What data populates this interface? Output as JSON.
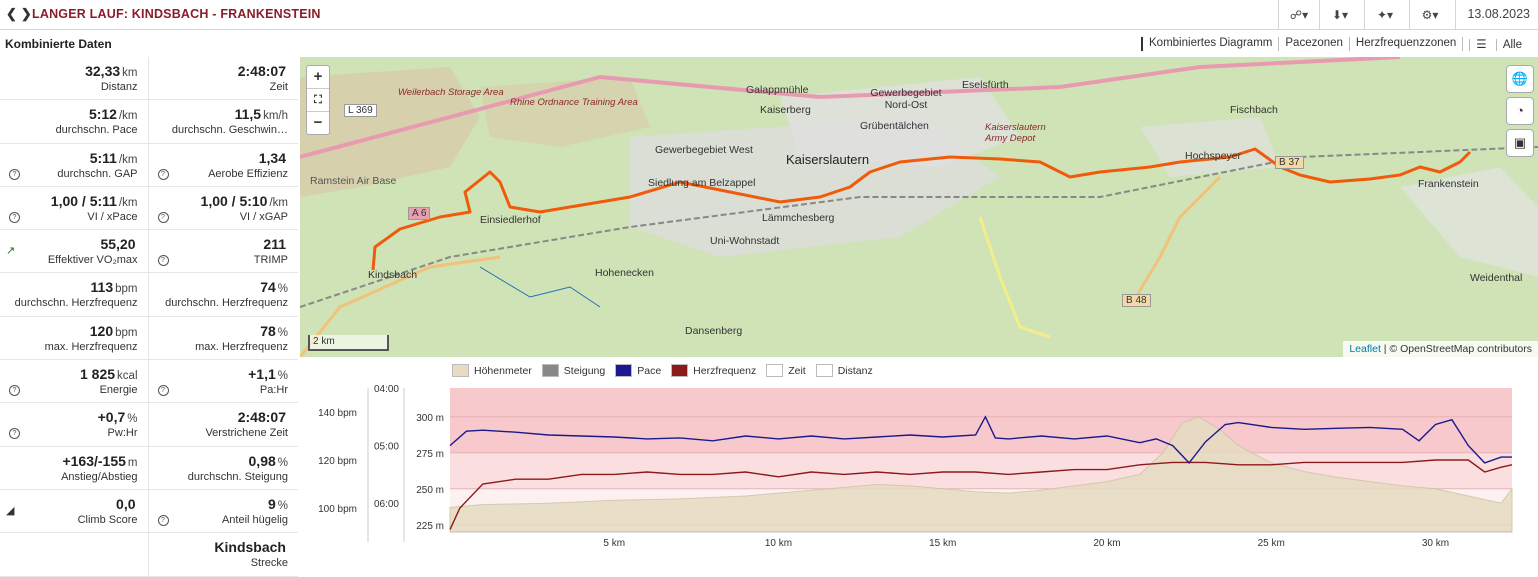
{
  "header": {
    "title": "LANGER LAUF: KINDSBACH - FRANKENSTEIN",
    "date": "13.08.2023",
    "toolbar": [
      "share-icon",
      "download-icon",
      "magic-wand-icon",
      "wrench-icon"
    ]
  },
  "section_title": "Kombinierte Daten",
  "view_tabs": [
    "Kombiniertes Diagramm",
    "Pacezonen",
    "Herzfrequenzzonen",
    "Alle"
  ],
  "stats": [
    [
      {
        "value": "32,33",
        "unit": "km",
        "label": "Distanz",
        "icon": ""
      },
      {
        "value": "2:48:07",
        "unit": "",
        "label": "Zeit",
        "icon": ""
      }
    ],
    [
      {
        "value": "5:12",
        "unit": "/km",
        "label": "durchschn. Pace",
        "icon": ""
      },
      {
        "value": "11,5",
        "unit": "km/h",
        "label": "durchschn. Geschwin…",
        "icon": ""
      }
    ],
    [
      {
        "value": "5:11",
        "unit": "/km",
        "label": "durchschn. GAP",
        "icon": "help"
      },
      {
        "value": "1,34",
        "unit": "",
        "label": "Aerobe Effizienz",
        "icon": "help"
      }
    ],
    [
      {
        "value": "1,00 / 5:11",
        "unit": "/km",
        "label": "VI / xPace",
        "icon": "help"
      },
      {
        "value": "1,00 / 5:10",
        "unit": "/km",
        "label": "VI / xGAP",
        "icon": "help"
      }
    ],
    [
      {
        "value": "55,20",
        "unit": "",
        "label": "Effektiver VO₂max",
        "icon": "trend"
      },
      {
        "value": "211",
        "unit": "",
        "label": "TRIMP",
        "icon": "help"
      }
    ],
    [
      {
        "value": "113",
        "unit": "bpm",
        "label": "durchschn. Herzfrequenz",
        "icon": ""
      },
      {
        "value": "74",
        "unit": "%",
        "label": "durchschn. Herzfrequenz",
        "icon": ""
      }
    ],
    [
      {
        "value": "120",
        "unit": "bpm",
        "label": "max. Herzfrequenz",
        "icon": ""
      },
      {
        "value": "78",
        "unit": "%",
        "label": "max. Herzfrequenz",
        "icon": ""
      }
    ],
    [
      {
        "value": "1 825",
        "unit": "kcal",
        "label": "Energie",
        "icon": "help"
      },
      {
        "value": "+1,1",
        "unit": "%",
        "label": "Pa:Hr",
        "icon": "help"
      }
    ],
    [
      {
        "value": "+0,7",
        "unit": "%",
        "label": "Pw:Hr",
        "icon": "help"
      },
      {
        "value": "2:48:07",
        "unit": "",
        "label": "Verstrichene Zeit",
        "icon": ""
      }
    ],
    [
      {
        "value": "+163/-155",
        "unit": "m",
        "label": "Anstieg/Abstieg",
        "icon": ""
      },
      {
        "value": "0,98",
        "unit": "%",
        "label": "durchschn. Steigung",
        "icon": ""
      }
    ],
    [
      {
        "value": "0,0",
        "unit": "",
        "label": "Climb Score",
        "icon": "chart"
      },
      {
        "value": "9",
        "unit": "%",
        "label": "Anteil hügelig",
        "icon": "help"
      }
    ],
    [
      {
        "value": "",
        "unit": "",
        "label": "",
        "icon": ""
      },
      {
        "value": "Kindsbach",
        "unit": "",
        "label": "Strecke",
        "icon": ""
      }
    ]
  ],
  "map": {
    "scale": "2 km",
    "attribution_link": "Leaflet",
    "attribution_text": "| © OpenStreetMap contributors",
    "labels": [
      "Weilerbach Storage Area",
      "Rhine Ordnance Training Area",
      "Ramstein Air Base",
      "Kindsbach",
      "Einsiedlerhof",
      "Gewerbegebiet West",
      "Siedlung am Belzappel",
      "Hohenecken",
      "Dansenberg",
      "Uni-Wohnstadt",
      "Lämmchesberg",
      "Kaiserslautern",
      "Galappmühle",
      "Kaiserberg",
      "Gewerbegebiet Nord-Ost",
      "Grübentälchen",
      "Eselsfürth",
      "Kaiserslautern Army Depot",
      "Fischbach",
      "Hochspeyer",
      "Frankenstein",
      "Weidenthal",
      "L 369",
      "A 6",
      "B 37",
      "B 48"
    ]
  },
  "chart_data": {
    "type": "line",
    "legend": [
      {
        "name": "Höhenmeter",
        "color": "#e7dcc3"
      },
      {
        "name": "Steigung",
        "color": "#888888"
      },
      {
        "name": "Pace",
        "color": "#1a1a8c"
      },
      {
        "name": "Herzfrequenz",
        "color": "#8c1a1a"
      },
      {
        "name": "Zeit",
        "color": "#ffffff"
      },
      {
        "name": "Distanz",
        "color": "#ffffff"
      }
    ],
    "x_ticks": [
      "5 km",
      "10 km",
      "15 km",
      "20 km",
      "25 km",
      "30 km"
    ],
    "x_tick_values": [
      5,
      10,
      15,
      20,
      25,
      30
    ],
    "xlim": [
      0,
      32.33
    ],
    "hr_ticks": [
      "140 bpm",
      "120 bpm",
      "100 bpm"
    ],
    "hr_tick_values": [
      140,
      120,
      100
    ],
    "hr_range": [
      90,
      150
    ],
    "pace_ticks": [
      "04:00",
      "05:00",
      "06:00"
    ],
    "pace_tick_values": [
      240,
      300,
      360
    ],
    "pace_range": [
      240,
      390
    ],
    "elev_ticks": [
      "300 m",
      "275 m",
      "250 m",
      "225 m"
    ],
    "elev_tick_values": [
      300,
      275,
      250,
      225
    ],
    "elev_range": [
      220,
      320
    ],
    "elevation": [
      [
        0,
        237
      ],
      [
        1,
        239
      ],
      [
        3,
        240
      ],
      [
        5,
        242
      ],
      [
        7,
        243
      ],
      [
        9,
        245
      ],
      [
        10,
        247
      ],
      [
        11,
        249
      ],
      [
        12,
        251
      ],
      [
        13,
        253
      ],
      [
        14,
        252
      ],
      [
        15,
        250
      ],
      [
        16,
        248
      ],
      [
        17,
        247
      ],
      [
        18,
        249
      ],
      [
        19,
        252
      ],
      [
        20,
        255
      ],
      [
        21,
        260
      ],
      [
        21.7,
        275
      ],
      [
        22.3,
        296
      ],
      [
        22.8,
        300
      ],
      [
        23.5,
        290
      ],
      [
        24,
        280
      ],
      [
        25,
        268
      ],
      [
        26,
        262
      ],
      [
        27,
        258
      ],
      [
        28,
        255
      ],
      [
        29,
        252
      ],
      [
        30,
        250
      ],
      [
        31,
        245
      ],
      [
        32,
        240
      ],
      [
        32.33,
        250
      ]
    ],
    "pace": [
      [
        0,
        300
      ],
      [
        0.5,
        285
      ],
      [
        1,
        284
      ],
      [
        2,
        286
      ],
      [
        3,
        289
      ],
      [
        4,
        290
      ],
      [
        5,
        291
      ],
      [
        6,
        293
      ],
      [
        7,
        292
      ],
      [
        8,
        295
      ],
      [
        9,
        290
      ],
      [
        10,
        293
      ],
      [
        11,
        290
      ],
      [
        12,
        293
      ],
      [
        13,
        291
      ],
      [
        14,
        289
      ],
      [
        15,
        291
      ],
      [
        16,
        289
      ],
      [
        16.3,
        270
      ],
      [
        16.6,
        292
      ],
      [
        17,
        293
      ],
      [
        18,
        290
      ],
      [
        19,
        293
      ],
      [
        20,
        290
      ],
      [
        21,
        297
      ],
      [
        21.5,
        293
      ],
      [
        22,
        300
      ],
      [
        22.5,
        318
      ],
      [
        23,
        296
      ],
      [
        23.6,
        278
      ],
      [
        24,
        276
      ],
      [
        25,
        281
      ],
      [
        26,
        283
      ],
      [
        27,
        282
      ],
      [
        28,
        281
      ],
      [
        29,
        283
      ],
      [
        29.5,
        295
      ],
      [
        30,
        278
      ],
      [
        30.5,
        273
      ],
      [
        31,
        300
      ],
      [
        31.5,
        318
      ],
      [
        32,
        312
      ],
      [
        32.33,
        312
      ]
    ],
    "heart_rate": [
      [
        0,
        91
      ],
      [
        0.3,
        100
      ],
      [
        1,
        110
      ],
      [
        2,
        112
      ],
      [
        3,
        112
      ],
      [
        4,
        114
      ],
      [
        5,
        114
      ],
      [
        6,
        115
      ],
      [
        7,
        114
      ],
      [
        8,
        114
      ],
      [
        9,
        115
      ],
      [
        10,
        113
      ],
      [
        11,
        115
      ],
      [
        12,
        114
      ],
      [
        13,
        115
      ],
      [
        14,
        114
      ],
      [
        15,
        115
      ],
      [
        16,
        115
      ],
      [
        17,
        114
      ],
      [
        18,
        115
      ],
      [
        19,
        116
      ],
      [
        20,
        116
      ],
      [
        21,
        118
      ],
      [
        22,
        119
      ],
      [
        23,
        119
      ],
      [
        24,
        118
      ],
      [
        25,
        118
      ],
      [
        26,
        119
      ],
      [
        27,
        119
      ],
      [
        28,
        119
      ],
      [
        29,
        119
      ],
      [
        30,
        120
      ],
      [
        31,
        120
      ],
      [
        31.5,
        115
      ],
      [
        32,
        117
      ],
      [
        32.33,
        118
      ]
    ]
  }
}
